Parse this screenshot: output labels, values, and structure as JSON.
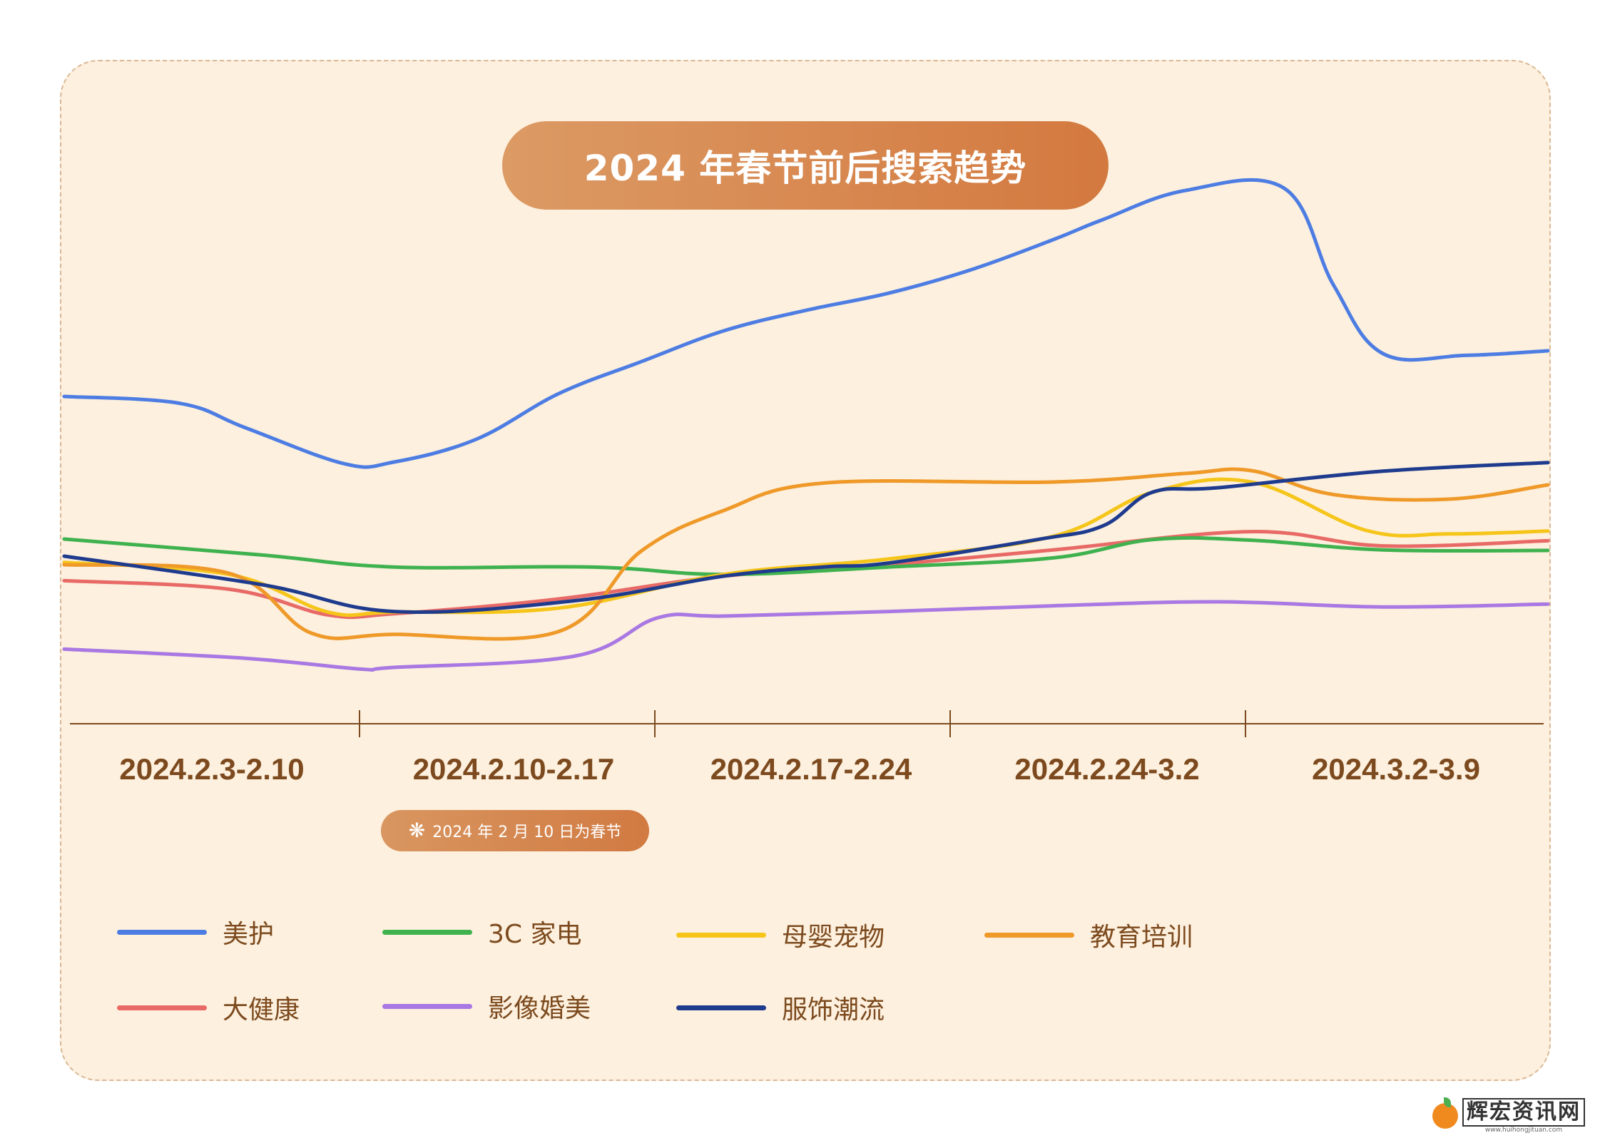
{
  "chart_data": {
    "type": "line",
    "title": "2024 年春节前后搜索趋势",
    "categories": [
      "2024.2.3-2.10",
      "2024.2.10-2.17",
      "2024.2.17-2.24",
      "2024.2.24-3.2",
      "2024.3.2-3.9"
    ],
    "note": "2024 年 2 月 10 日为春节",
    "note_icon": "sparkle-icon",
    "ylim": [
      0,
      100
    ],
    "grid": false,
    "legend_position": "bottom-left",
    "series": [
      {
        "name": "美护",
        "color": "#4d7de3",
        "x": [
          0,
          0.35,
          0.55,
          0.85,
          1.0,
          1.25,
          1.5,
          1.75,
          2.0,
          2.25,
          2.5,
          2.75,
          3.0,
          3.15,
          3.4,
          3.7,
          3.85,
          4.0,
          4.25,
          4.5
        ],
        "values": [
          55.5,
          54.3,
          50,
          43.7,
          44,
          48,
          56,
          61.6,
          67,
          70.6,
          73.6,
          77.7,
          83,
          86.5,
          91.6,
          92,
          75,
          63,
          62.7,
          63.5
        ]
      },
      {
        "name": "3C 家电",
        "color": "#3fb24f",
        "x": [
          0,
          0.6,
          1.0,
          1.6,
          2.0,
          2.5,
          3.0,
          3.3,
          3.6,
          4.0,
          4.5
        ],
        "values": [
          30.5,
          27.7,
          25.6,
          25.6,
          24.3,
          25.6,
          27.2,
          30.4,
          30.3,
          28.6,
          28.5
        ]
      },
      {
        "name": "母婴宠物",
        "color": "#f6c51a",
        "x": [
          0,
          0.5,
          0.8,
          1.0,
          1.5,
          2.0,
          2.5,
          3.0,
          3.3,
          3.6,
          3.95,
          4.2,
          4.5
        ],
        "values": [
          26.4,
          24.3,
          17.7,
          17.7,
          18.4,
          24.3,
          27,
          31,
          38.7,
          40.5,
          32,
          31.4,
          31.9
        ]
      },
      {
        "name": "教育培训",
        "color": "#ef9929",
        "x": [
          0,
          0.5,
          0.75,
          1.0,
          1.5,
          1.75,
          2.0,
          2.3,
          3.0,
          3.4,
          3.6,
          3.85,
          4.2,
          4.5
        ],
        "values": [
          26,
          24.5,
          14,
          13.8,
          14.3,
          28.4,
          35.5,
          40.3,
          40.5,
          42,
          42.5,
          38.3,
          37.5,
          40
        ]
      },
      {
        "name": "大健康",
        "color": "#e86a67",
        "x": [
          0,
          0.5,
          0.8,
          1.0,
          1.5,
          2.0,
          2.5,
          3.0,
          3.6,
          4.0,
          4.5
        ],
        "values": [
          23.2,
          21.7,
          17.2,
          17.4,
          20,
          24,
          26,
          28.6,
          31.8,
          29.3,
          30.2
        ]
      },
      {
        "name": "影像婚美",
        "color": "#a978e3",
        "x": [
          0,
          0.55,
          0.9,
          1.0,
          1.55,
          1.8,
          2.0,
          2.5,
          3.0,
          3.5,
          4.0,
          4.5
        ],
        "values": [
          11.2,
          9.6,
          7.7,
          8,
          10,
          16.7,
          17,
          17.8,
          18.8,
          19.5,
          18.6,
          19.1
        ]
      },
      {
        "name": "服饰潮流",
        "color": "#1f3b8e",
        "x": [
          0,
          0.6,
          1.0,
          1.55,
          2.0,
          2.3,
          2.5,
          2.95,
          3.15,
          3.3,
          3.5,
          4.0,
          4.5
        ],
        "values": [
          27.5,
          22.5,
          17.8,
          19.7,
          24,
          25.6,
          26.3,
          30.4,
          32.8,
          38.7,
          39.5,
          42.4,
          43.9
        ]
      }
    ]
  }
}
